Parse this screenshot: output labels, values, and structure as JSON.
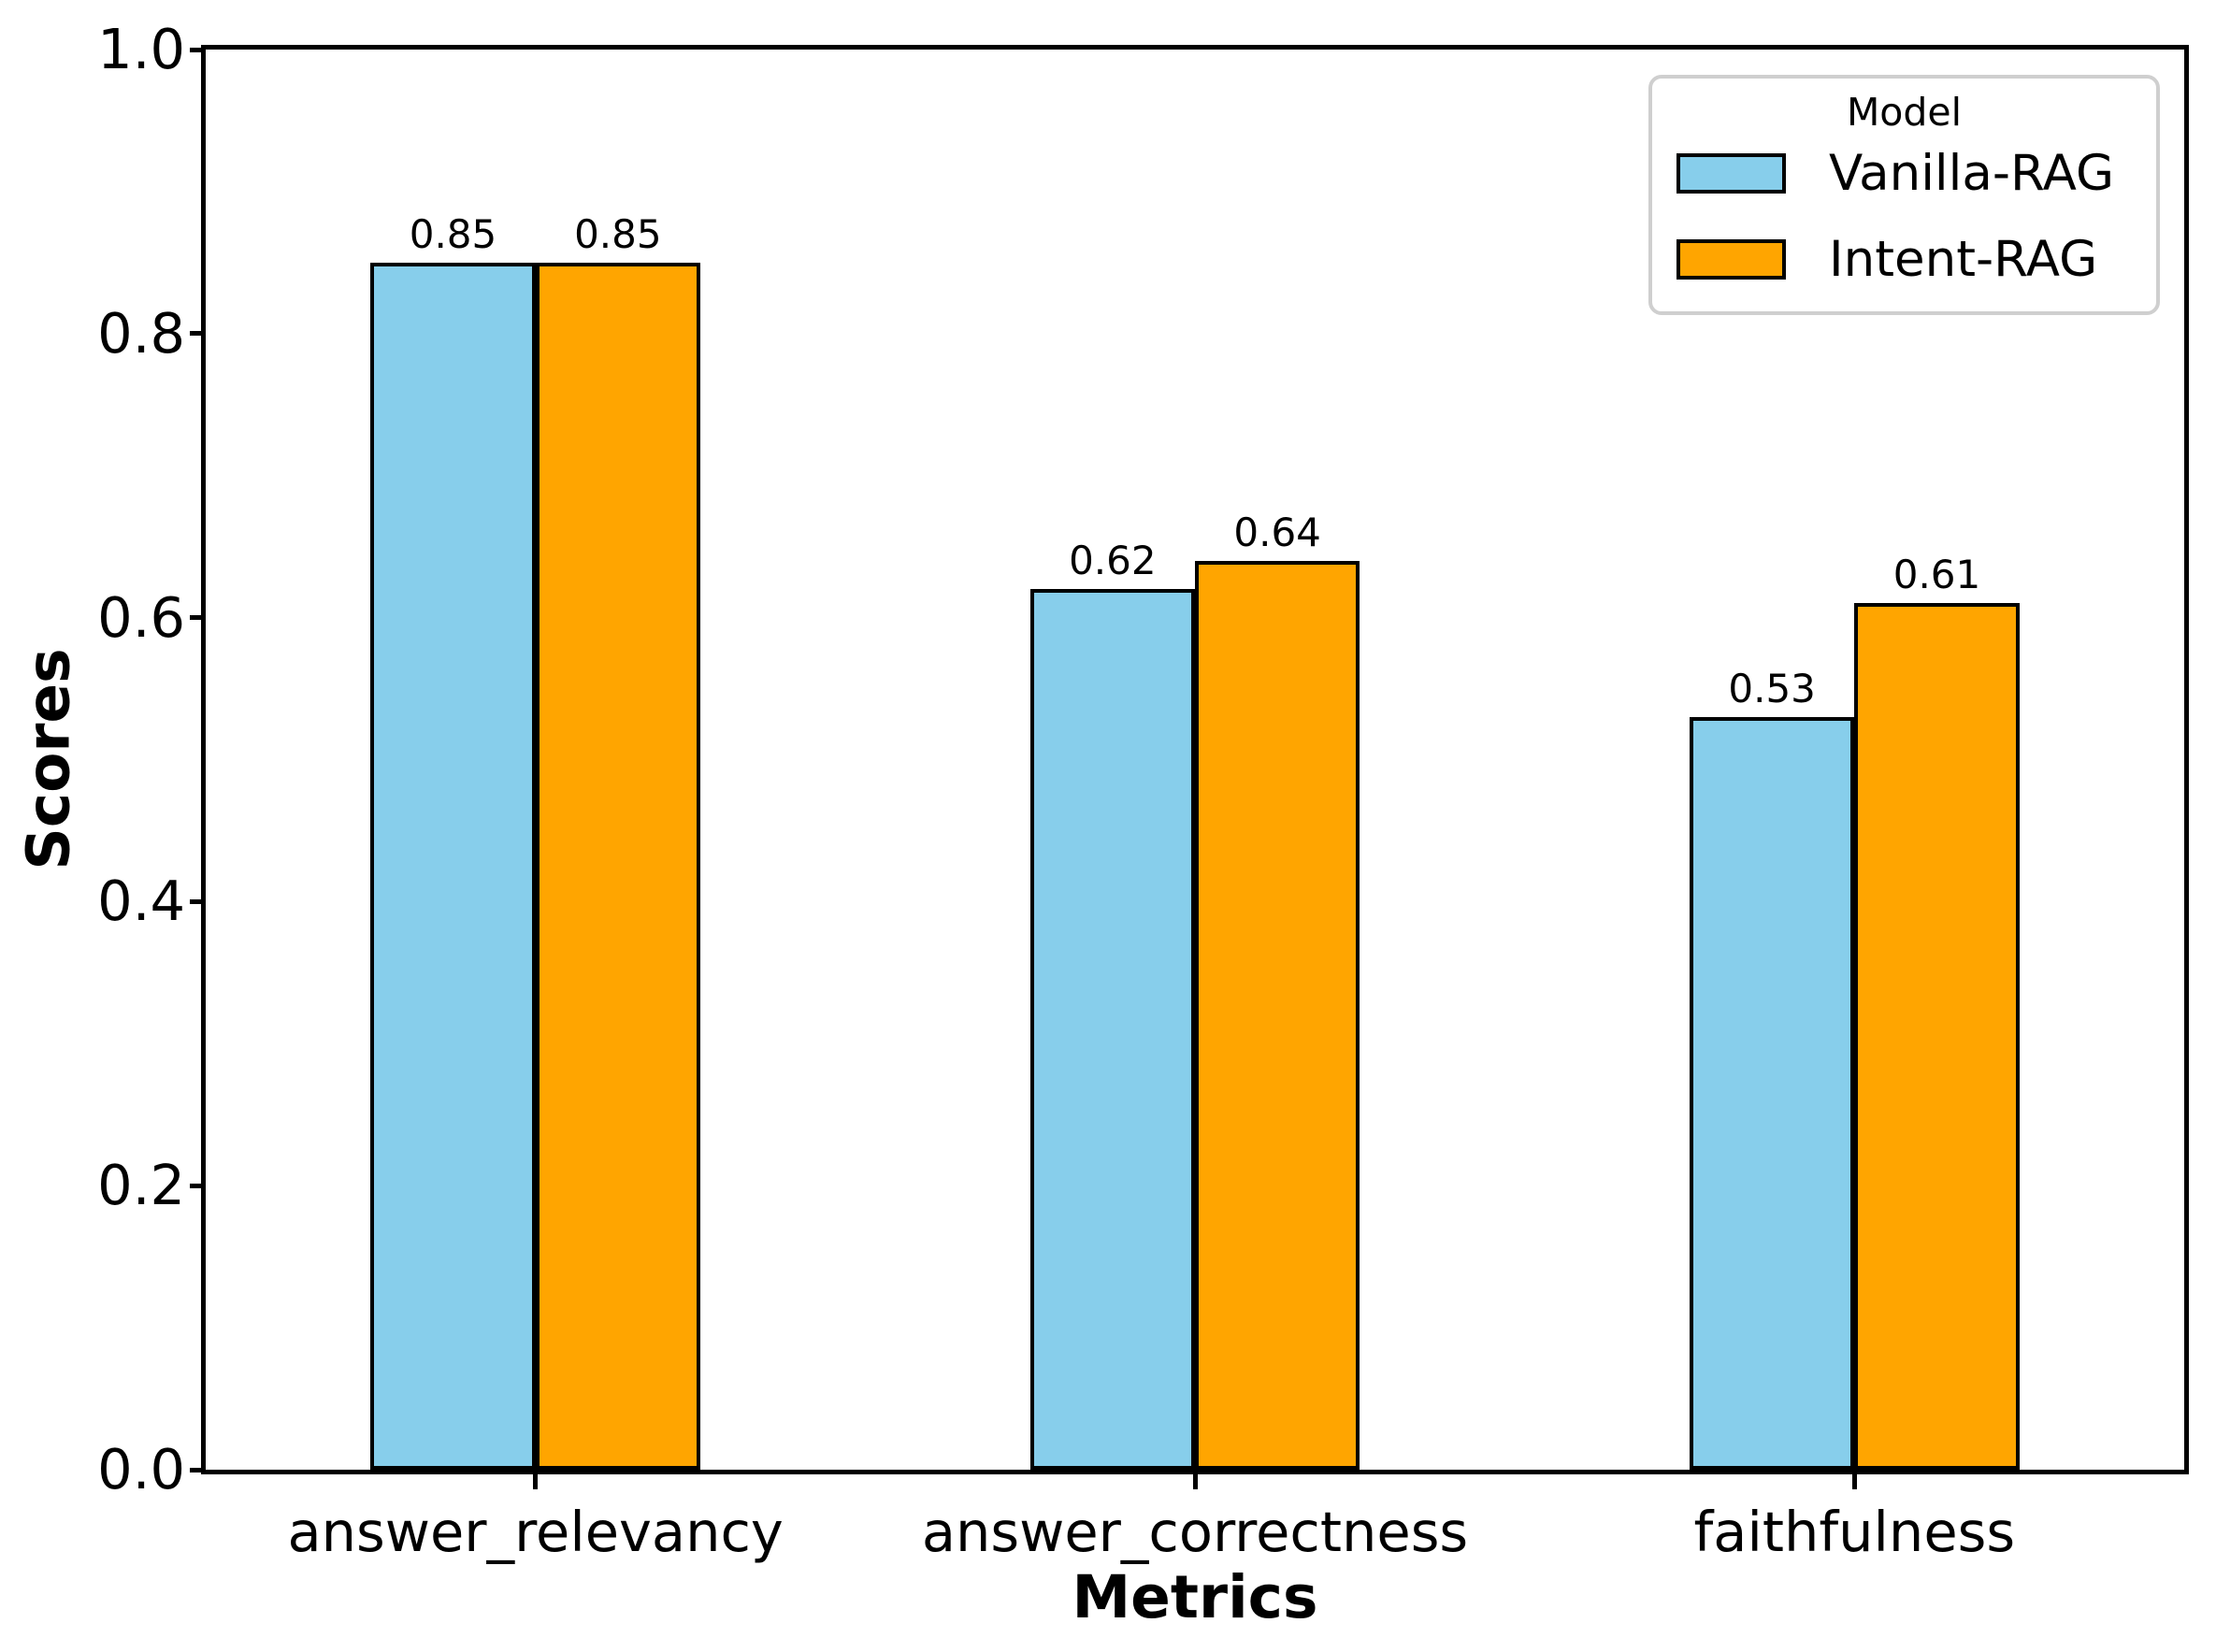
{
  "chart_data": {
    "type": "bar",
    "xlabel": "Metrics",
    "ylabel": "Scores",
    "categories": [
      "answer_relevancy",
      "answer_correctness",
      "faithfulness"
    ],
    "series": [
      {
        "name": "Vanilla-RAG",
        "color": "#87CEEB",
        "values": [
          0.85,
          0.62,
          0.53
        ],
        "labels": [
          "0.85",
          "0.62",
          "0.53"
        ]
      },
      {
        "name": "Intent-RAG",
        "color": "#FFA500",
        "values": [
          0.85,
          0.64,
          0.61
        ],
        "labels": [
          "0.85",
          "0.64",
          "0.61"
        ]
      }
    ],
    "ylim": [
      0.0,
      1.0
    ],
    "yticks": [
      "0.0",
      "0.2",
      "0.4",
      "0.6",
      "0.8",
      "1.0"
    ],
    "legend_title": "Model",
    "legend_position": "upper right",
    "grid": false,
    "bar_edge_color": "#000000",
    "axis_color": "#000000",
    "legend_border_color": "#cfcfcf",
    "background": "#ffffff"
  }
}
